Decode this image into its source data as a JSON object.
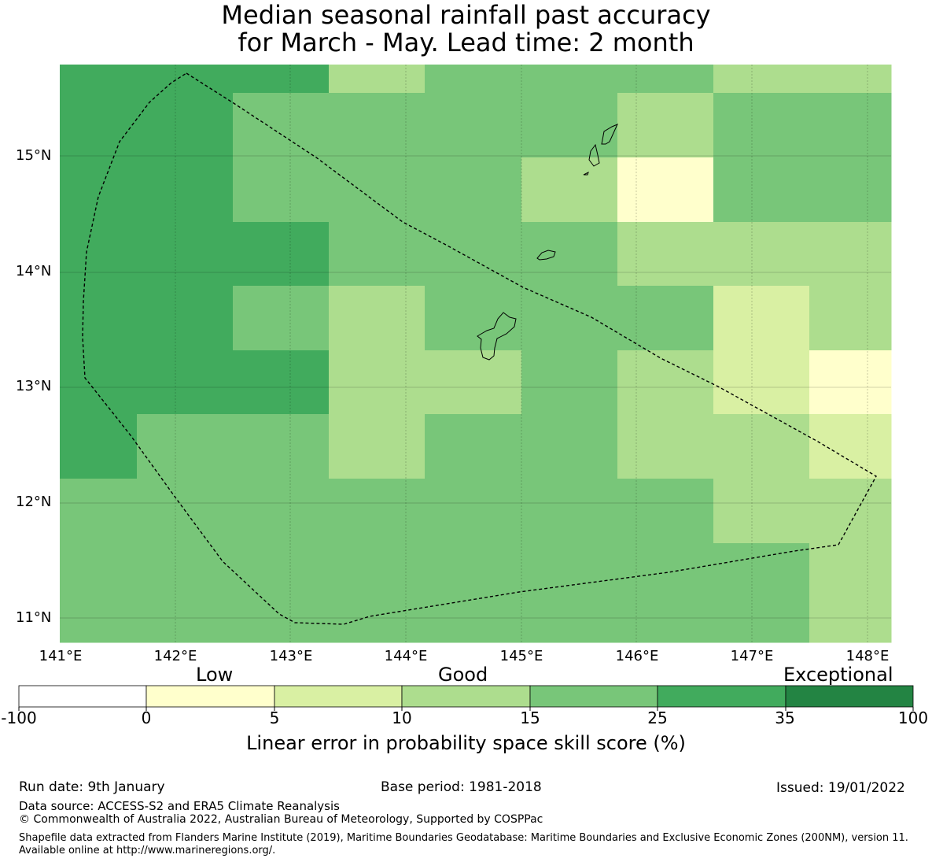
{
  "title": {
    "line1": "Median seasonal rainfall past accuracy",
    "line2": "for March - May. Lead time: 2 month"
  },
  "map": {
    "lat_labels": [
      "15°N",
      "14°N",
      "13°N",
      "12°N",
      "11°N"
    ],
    "lon_labels": [
      "141°E",
      "142°E",
      "143°E",
      "144°E",
      "145°E",
      "146°E",
      "147°E",
      "148°E"
    ],
    "boundary": "dashed",
    "colors": {
      "c5": "#ffffcc",
      "c10": "#d9f0a3",
      "c15": "#addd8e",
      "c25": "#78c679",
      "c35": "#41ab5d",
      "c100": "#238443"
    }
  },
  "colorbar": {
    "categories": [
      "Low",
      "Good",
      "Exceptional"
    ],
    "ticks": [
      "-100",
      "0",
      "5",
      "10",
      "15",
      "25",
      "35",
      "100"
    ],
    "colors": [
      "#ffffff",
      "#ffffcc",
      "#d9f0a3",
      "#addd8e",
      "#78c679",
      "#41ab5d",
      "#238443"
    ],
    "title": "Linear error in probability space skill score (%)"
  },
  "footer": {
    "run_date": "Run date: 9th January",
    "base_period": "Base period: 1981-2018",
    "issued": "Issued: 19/01/2022",
    "data_source": "Data source: ACCESS-S2 and ERA5 Climate Reanalysis",
    "copyright": "© Commonwealth of Australia 2022, Australian Bureau of Meteorology, Supported by COSPPac",
    "shapefile": "Shapefile data extracted from Flanders Marine Institute (2019), Maritime Boundaries Geodatabase: Maritime Boundaries and Exclusive Economic Zones (200NM), version 11. Available online at http://www.marineregions.org/."
  }
}
